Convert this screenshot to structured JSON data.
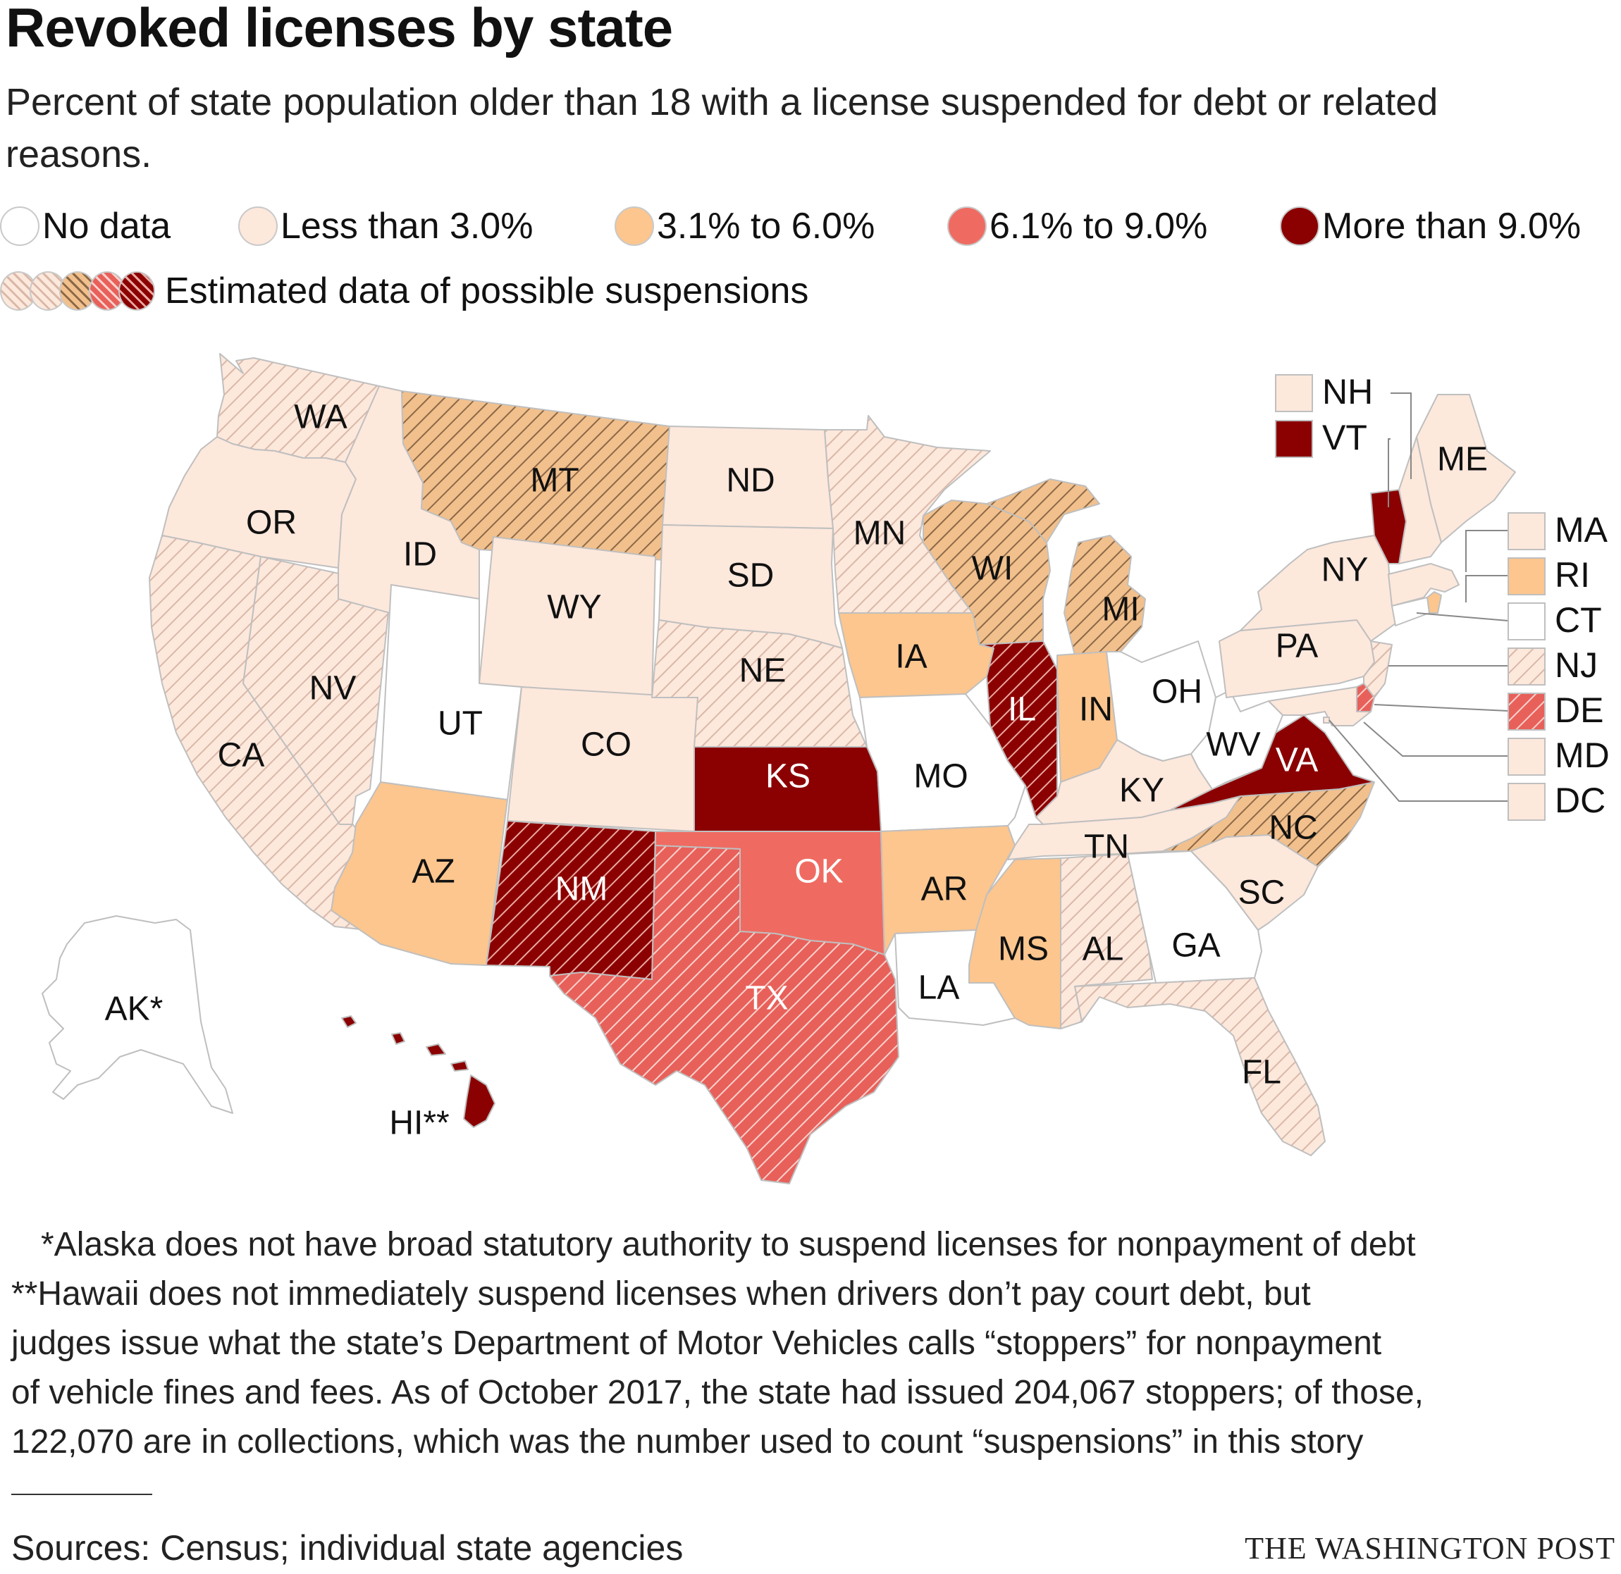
{
  "title": "Revoked licenses by state",
  "subtitle": "Percent of state population older than 18 with a license suspended for debt or related reasons.",
  "colors": {
    "no_data": "#ffffff",
    "lt3": "#fde8dc",
    "c3to6": "#fcc68e",
    "c6to9": "#ef6b62",
    "gt9": "#8b0000",
    "border": "#bfbfbf"
  },
  "legend": {
    "items": [
      {
        "label": "No data",
        "category": "no_data"
      },
      {
        "label": "Less than 3.0%",
        "category": "lt3"
      },
      {
        "label": "3.1% to 6.0%",
        "category": "c3to6"
      },
      {
        "label": "6.1% to 9.0%",
        "category": "c6to9"
      },
      {
        "label": "More than 9.0%",
        "category": "gt9"
      }
    ],
    "estimated_label": "Estimated data of possible suspensions"
  },
  "chart_data": {
    "type": "choropleth",
    "states": [
      {
        "code": "WA",
        "category": "lt3",
        "estimated": true
      },
      {
        "code": "OR",
        "category": "lt3",
        "estimated": false
      },
      {
        "code": "CA",
        "category": "lt3",
        "estimated": true
      },
      {
        "code": "NV",
        "category": "lt3",
        "estimated": true
      },
      {
        "code": "ID",
        "category": "lt3",
        "estimated": false
      },
      {
        "code": "MT",
        "category": "c3to6",
        "estimated": true
      },
      {
        "code": "WY",
        "category": "lt3",
        "estimated": false
      },
      {
        "code": "UT",
        "category": "no_data",
        "estimated": false
      },
      {
        "code": "AZ",
        "category": "c3to6",
        "estimated": false
      },
      {
        "code": "CO",
        "category": "lt3",
        "estimated": false
      },
      {
        "code": "NM",
        "category": "gt9",
        "estimated": true
      },
      {
        "code": "ND",
        "category": "lt3",
        "estimated": false
      },
      {
        "code": "SD",
        "category": "lt3",
        "estimated": false
      },
      {
        "code": "NE",
        "category": "lt3",
        "estimated": true
      },
      {
        "code": "KS",
        "category": "gt9",
        "estimated": false
      },
      {
        "code": "OK",
        "category": "c6to9",
        "estimated": false
      },
      {
        "code": "TX",
        "category": "c6to9",
        "estimated": true
      },
      {
        "code": "MN",
        "category": "lt3",
        "estimated": true
      },
      {
        "code": "IA",
        "category": "c3to6",
        "estimated": false
      },
      {
        "code": "MO",
        "category": "no_data",
        "estimated": false
      },
      {
        "code": "AR",
        "category": "c3to6",
        "estimated": false
      },
      {
        "code": "LA",
        "category": "no_data",
        "estimated": false
      },
      {
        "code": "WI",
        "category": "c3to6",
        "estimated": true
      },
      {
        "code": "IL",
        "category": "gt9",
        "estimated": true
      },
      {
        "code": "MI",
        "category": "c3to6",
        "estimated": true
      },
      {
        "code": "IN",
        "category": "c3to6",
        "estimated": false
      },
      {
        "code": "OH",
        "category": "no_data",
        "estimated": false
      },
      {
        "code": "KY",
        "category": "lt3",
        "estimated": false
      },
      {
        "code": "TN",
        "category": "lt3",
        "estimated": false
      },
      {
        "code": "MS",
        "category": "c3to6",
        "estimated": false
      },
      {
        "code": "AL",
        "category": "lt3",
        "estimated": true
      },
      {
        "code": "GA",
        "category": "no_data",
        "estimated": false
      },
      {
        "code": "FL",
        "category": "lt3",
        "estimated": true
      },
      {
        "code": "SC",
        "category": "lt3",
        "estimated": false
      },
      {
        "code": "NC",
        "category": "c3to6",
        "estimated": true
      },
      {
        "code": "VA",
        "category": "gt9",
        "estimated": false
      },
      {
        "code": "WV",
        "category": "no_data",
        "estimated": false
      },
      {
        "code": "PA",
        "category": "lt3",
        "estimated": false
      },
      {
        "code": "NY",
        "category": "lt3",
        "estimated": false
      },
      {
        "code": "VT",
        "category": "gt9",
        "estimated": false
      },
      {
        "code": "NH",
        "category": "lt3",
        "estimated": false
      },
      {
        "code": "ME",
        "category": "lt3",
        "estimated": false
      },
      {
        "code": "MA",
        "category": "lt3",
        "estimated": false
      },
      {
        "code": "RI",
        "category": "c3to6",
        "estimated": false
      },
      {
        "code": "CT",
        "category": "no_data",
        "estimated": false
      },
      {
        "code": "NJ",
        "category": "lt3",
        "estimated": true
      },
      {
        "code": "DE",
        "category": "c6to9",
        "estimated": true
      },
      {
        "code": "MD",
        "category": "lt3",
        "estimated": false
      },
      {
        "code": "DC",
        "category": "lt3",
        "estimated": false
      },
      {
        "code": "AK",
        "category": "no_data",
        "estimated": false,
        "label": "AK*"
      },
      {
        "code": "HI",
        "category": "gt9",
        "estimated": false,
        "label": "HI**"
      }
    ]
  },
  "notes": [
    "*Alaska does not have broad statutory authority to suspend licenses for nonpayment of debt",
    "**Hawaii does not immediately suspend licenses when drivers don’t pay court debt, but",
    "judges issue what the state’s Department of Motor Vehicles calls “stoppers” for nonpayment",
    "of vehicle fines and fees. As of October 2017, the state had issued 204,067 stoppers; of those,",
    "122,070 are in collections, which was the number used to count “suspensions” in this story"
  ],
  "source": "Sources: Census; individual state agencies",
  "credit": "THE WASHINGTON POST"
}
